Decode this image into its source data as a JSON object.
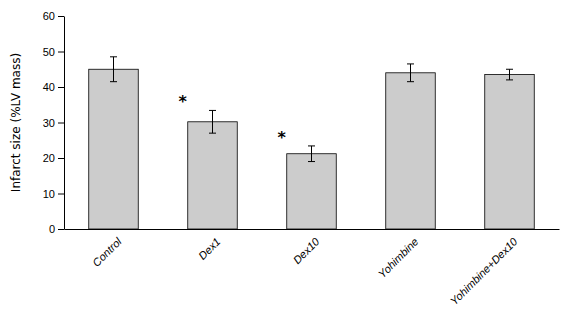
{
  "chart_data": {
    "type": "bar",
    "categories": [
      "Control",
      "Dex1",
      "Dex10",
      "Yohimbine",
      "Yohimbine+Dex10"
    ],
    "values": [
      45.0,
      30.2,
      21.2,
      44.0,
      43.5
    ],
    "errors": [
      3.5,
      3.2,
      2.2,
      2.5,
      1.5
    ],
    "significance": [
      null,
      "*",
      "*",
      null,
      null
    ],
    "color": "#cccccc",
    "ylabel": "Infarct size (%LV mass)",
    "ylim": [
      0,
      60
    ],
    "yticks": [
      0,
      10,
      20,
      30,
      40,
      50,
      60
    ],
    "grid": false
  }
}
